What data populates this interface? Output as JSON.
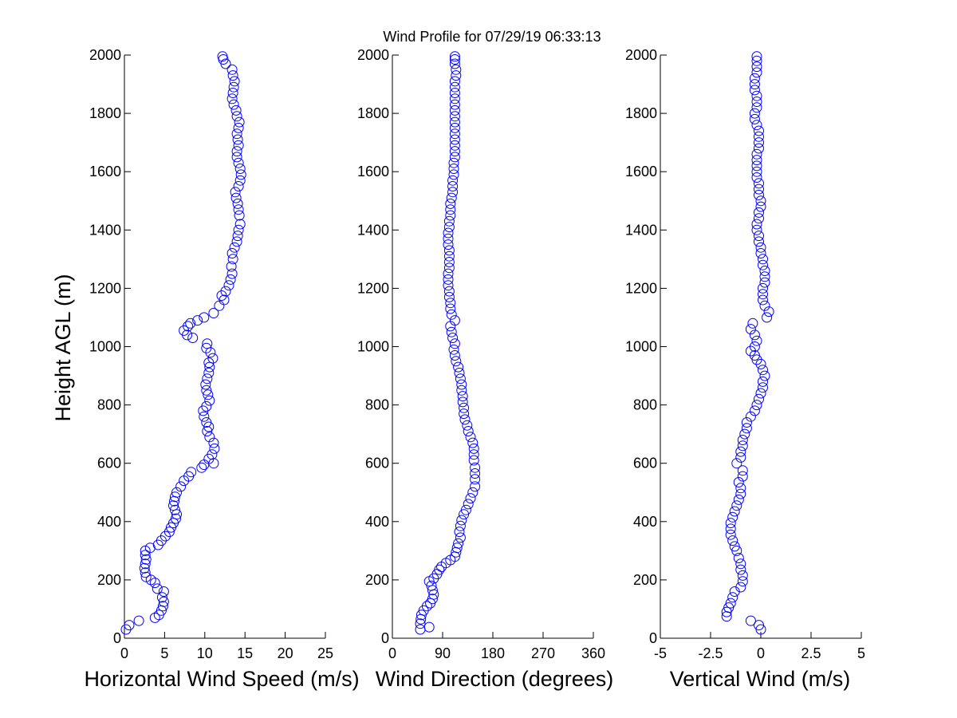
{
  "figure_title": "Wind Profile for  07/29/19 06:33:13",
  "colors": {
    "marker": "#0000ff",
    "axes": "#000000",
    "background": "#ffffff"
  },
  "chart_data": [
    {
      "type": "scatter",
      "title": "Wind Profile for  07/29/19 06:33:13",
      "xlabel": "Horizontal Wind Speed (m/s)",
      "ylabel": "Height AGL (m)",
      "xlim": [
        0,
        25
      ],
      "ylim": [
        0,
        2000
      ],
      "xticks": [
        0,
        5,
        10,
        15,
        20,
        25
      ],
      "xtick_labels": [
        "0",
        "5",
        "10",
        "15",
        "20",
        "25"
      ],
      "yticks": [
        0,
        200,
        400,
        600,
        800,
        1000,
        1200,
        1400,
        1600,
        1800,
        2000
      ],
      "ytick_labels": [
        "0",
        "200",
        "400",
        "600",
        "800",
        "1000",
        "1200",
        "1400",
        "1600",
        "1800",
        "2000"
      ],
      "grid": false,
      "marker": "open-circle",
      "color": "#0000ff",
      "points": [
        [
          0.2,
          30
        ],
        [
          0.6,
          45
        ],
        [
          1.8,
          60
        ],
        [
          3.8,
          70
        ],
        [
          4.3,
          80
        ],
        [
          4.6,
          95
        ],
        [
          4.8,
          110
        ],
        [
          4.9,
          125
        ],
        [
          4.7,
          140
        ],
        [
          4.9,
          160
        ],
        [
          4.1,
          170
        ],
        [
          3.8,
          190
        ],
        [
          3.3,
          200
        ],
        [
          2.7,
          210
        ],
        [
          2.6,
          225
        ],
        [
          2.5,
          240
        ],
        [
          2.6,
          255
        ],
        [
          2.7,
          270
        ],
        [
          2.6,
          285
        ],
        [
          2.6,
          300
        ],
        [
          3.2,
          310
        ],
        [
          4.2,
          320
        ],
        [
          4.6,
          335
        ],
        [
          5.1,
          350
        ],
        [
          5.6,
          365
        ],
        [
          5.8,
          380
        ],
        [
          6.1,
          395
        ],
        [
          6.4,
          410
        ],
        [
          6.5,
          425
        ],
        [
          6.3,
          440
        ],
        [
          6.1,
          455
        ],
        [
          6.2,
          470
        ],
        [
          6.3,
          485
        ],
        [
          6.5,
          500
        ],
        [
          7.0,
          520
        ],
        [
          7.4,
          540
        ],
        [
          8.0,
          555
        ],
        [
          8.3,
          570
        ],
        [
          9.6,
          585
        ],
        [
          9.9,
          595
        ],
        [
          11.1,
          600
        ],
        [
          10.5,
          615
        ],
        [
          10.9,
          630
        ],
        [
          11.2,
          650
        ],
        [
          11.1,
          670
        ],
        [
          10.6,
          690
        ],
        [
          10.3,
          710
        ],
        [
          10.5,
          725
        ],
        [
          10.2,
          740
        ],
        [
          9.9,
          760
        ],
        [
          9.8,
          780
        ],
        [
          10.2,
          795
        ],
        [
          10.6,
          815
        ],
        [
          10.4,
          835
        ],
        [
          10.2,
          850
        ],
        [
          10.1,
          870
        ],
        [
          10.3,
          890
        ],
        [
          10.5,
          910
        ],
        [
          10.6,
          930
        ],
        [
          10.5,
          945
        ],
        [
          11.0,
          960
        ],
        [
          10.7,
          980
        ],
        [
          10.2,
          995
        ],
        [
          10.3,
          1010
        ],
        [
          8.5,
          1030
        ],
        [
          7.8,
          1040
        ],
        [
          7.4,
          1055
        ],
        [
          7.9,
          1070
        ],
        [
          8.2,
          1080
        ],
        [
          9.1,
          1090
        ],
        [
          9.9,
          1100
        ],
        [
          11.1,
          1115
        ],
        [
          11.8,
          1140
        ],
        [
          12.4,
          1160
        ],
        [
          12.1,
          1175
        ],
        [
          12.6,
          1190
        ],
        [
          13.0,
          1210
        ],
        [
          13.2,
          1230
        ],
        [
          13.4,
          1250
        ],
        [
          13.3,
          1275
        ],
        [
          13.5,
          1300
        ],
        [
          13.4,
          1320
        ],
        [
          13.7,
          1340
        ],
        [
          14.0,
          1360
        ],
        [
          14.1,
          1380
        ],
        [
          14.2,
          1400
        ],
        [
          14.4,
          1420
        ],
        [
          14.3,
          1450
        ],
        [
          14.2,
          1470
        ],
        [
          14.1,
          1490
        ],
        [
          13.9,
          1510
        ],
        [
          13.8,
          1530
        ],
        [
          14.2,
          1550
        ],
        [
          14.4,
          1570
        ],
        [
          14.5,
          1590
        ],
        [
          14.4,
          1610
        ],
        [
          14.2,
          1630
        ],
        [
          14.0,
          1650
        ],
        [
          14.0,
          1670
        ],
        [
          14.2,
          1690
        ],
        [
          14.1,
          1710
        ],
        [
          14.0,
          1730
        ],
        [
          14.2,
          1750
        ],
        [
          14.3,
          1770
        ],
        [
          14.0,
          1790
        ],
        [
          13.9,
          1810
        ],
        [
          13.6,
          1830
        ],
        [
          13.4,
          1850
        ],
        [
          13.5,
          1870
        ],
        [
          13.6,
          1890
        ],
        [
          13.7,
          1910
        ],
        [
          13.5,
          1930
        ],
        [
          13.4,
          1950
        ],
        [
          12.6,
          1970
        ],
        [
          12.3,
          1985
        ],
        [
          12.2,
          1995
        ]
      ]
    },
    {
      "type": "scatter",
      "xlabel": "Wind Direction (degrees)",
      "ylabel": "",
      "xlim": [
        0,
        360
      ],
      "ylim": [
        0,
        2000
      ],
      "xticks": [
        0,
        90,
        180,
        270,
        360
      ],
      "xtick_labels": [
        "0",
        "90",
        "180",
        "270",
        "360"
      ],
      "yticks": [
        0,
        200,
        400,
        600,
        800,
        1000,
        1200,
        1400,
        1600,
        1800,
        2000
      ],
      "ytick_labels": [
        "0",
        "200",
        "400",
        "600",
        "800",
        "1000",
        "1200",
        "1400",
        "1600",
        "1800",
        "2000"
      ],
      "grid": false,
      "marker": "open-circle",
      "color": "#0000ff",
      "points": [
        [
          50,
          30
        ],
        [
          66,
          38
        ],
        [
          50,
          50
        ],
        [
          51,
          65
        ],
        [
          52,
          80
        ],
        [
          56,
          95
        ],
        [
          62,
          110
        ],
        [
          68,
          120
        ],
        [
          72,
          135
        ],
        [
          74,
          150
        ],
        [
          72,
          165
        ],
        [
          70,
          180
        ],
        [
          66,
          195
        ],
        [
          74,
          205
        ],
        [
          80,
          220
        ],
        [
          84,
          235
        ],
        [
          88,
          245
        ],
        [
          96,
          258
        ],
        [
          104,
          268
        ],
        [
          112,
          280
        ],
        [
          114,
          295
        ],
        [
          116,
          310
        ],
        [
          118,
          325
        ],
        [
          122,
          345
        ],
        [
          120,
          365
        ],
        [
          122,
          385
        ],
        [
          124,
          405
        ],
        [
          128,
          425
        ],
        [
          132,
          440
        ],
        [
          136,
          460
        ],
        [
          140,
          480
        ],
        [
          144,
          500
        ],
        [
          148,
          520
        ],
        [
          148,
          545
        ],
        [
          148,
          565
        ],
        [
          148,
          585
        ],
        [
          146,
          610
        ],
        [
          146,
          630
        ],
        [
          146,
          650
        ],
        [
          144,
          670
        ],
        [
          140,
          690
        ],
        [
          136,
          710
        ],
        [
          134,
          730
        ],
        [
          130,
          750
        ],
        [
          128,
          770
        ],
        [
          128,
          790
        ],
        [
          126,
          810
        ],
        [
          126,
          830
        ],
        [
          124,
          850
        ],
        [
          124,
          870
        ],
        [
          122,
          890
        ],
        [
          120,
          910
        ],
        [
          118,
          930
        ],
        [
          114,
          950
        ],
        [
          112,
          970
        ],
        [
          110,
          990
        ],
        [
          112,
          1010
        ],
        [
          108,
          1030
        ],
        [
          106,
          1050
        ],
        [
          104,
          1070
        ],
        [
          112,
          1090
        ],
        [
          106,
          1110
        ],
        [
          104,
          1130
        ],
        [
          104,
          1150
        ],
        [
          102,
          1170
        ],
        [
          102,
          1190
        ],
        [
          100,
          1210
        ],
        [
          100,
          1230
        ],
        [
          100,
          1250
        ],
        [
          102,
          1270
        ],
        [
          102,
          1290
        ],
        [
          102,
          1310
        ],
        [
          102,
          1330
        ],
        [
          100,
          1350
        ],
        [
          100,
          1370
        ],
        [
          100,
          1390
        ],
        [
          102,
          1410
        ],
        [
          102,
          1430
        ],
        [
          104,
          1450
        ],
        [
          104,
          1470
        ],
        [
          104,
          1490
        ],
        [
          106,
          1510
        ],
        [
          108,
          1530
        ],
        [
          108,
          1550
        ],
        [
          108,
          1570
        ],
        [
          110,
          1590
        ],
        [
          110,
          1610
        ],
        [
          110,
          1630
        ],
        [
          112,
          1650
        ],
        [
          112,
          1670
        ],
        [
          112,
          1690
        ],
        [
          112,
          1710
        ],
        [
          112,
          1730
        ],
        [
          112,
          1750
        ],
        [
          112,
          1770
        ],
        [
          112,
          1790
        ],
        [
          112,
          1810
        ],
        [
          112,
          1830
        ],
        [
          112,
          1850
        ],
        [
          112,
          1870
        ],
        [
          112,
          1890
        ],
        [
          112,
          1910
        ],
        [
          114,
          1930
        ],
        [
          114,
          1950
        ],
        [
          112,
          1970
        ],
        [
          112,
          1985
        ],
        [
          112,
          1995
        ]
      ]
    },
    {
      "type": "scatter",
      "xlabel": "Vertical Wind (m/s)",
      "ylabel": "",
      "xlim": [
        -5,
        5
      ],
      "ylim": [
        0,
        2000
      ],
      "xticks": [
        -5,
        -2.5,
        0,
        2.5,
        5
      ],
      "xtick_labels": [
        "-5",
        "-2.5",
        "0",
        "2.5",
        "5"
      ],
      "yticks": [
        0,
        200,
        400,
        600,
        800,
        1000,
        1200,
        1400,
        1600,
        1800,
        2000
      ],
      "ytick_labels": [
        "0",
        "200",
        "400",
        "600",
        "800",
        "1000",
        "1200",
        "1400",
        "1600",
        "1800",
        "2000"
      ],
      "grid": false,
      "marker": "open-circle",
      "color": "#0000ff",
      "points": [
        [
          0.0,
          30
        ],
        [
          -0.1,
          45
        ],
        [
          -0.5,
          60
        ],
        [
          -1.7,
          75
        ],
        [
          -1.7,
          90
        ],
        [
          -1.6,
          105
        ],
        [
          -1.5,
          120
        ],
        [
          -1.4,
          140
        ],
        [
          -1.3,
          160
        ],
        [
          -1.0,
          175
        ],
        [
          -0.9,
          195
        ],
        [
          -0.9,
          215
        ],
        [
          -1.0,
          235
        ],
        [
          -1.0,
          255
        ],
        [
          -1.1,
          275
        ],
        [
          -1.2,
          300
        ],
        [
          -1.3,
          315
        ],
        [
          -1.4,
          335
        ],
        [
          -1.5,
          355
        ],
        [
          -1.5,
          375
        ],
        [
          -1.5,
          395
        ],
        [
          -1.4,
          415
        ],
        [
          -1.3,
          435
        ],
        [
          -1.2,
          455
        ],
        [
          -1.1,
          475
        ],
        [
          -1.0,
          495
        ],
        [
          -1.0,
          515
        ],
        [
          -1.1,
          535
        ],
        [
          -0.9,
          555
        ],
        [
          -0.9,
          575
        ],
        [
          -1.2,
          600
        ],
        [
          -1.0,
          620
        ],
        [
          -1.0,
          640
        ],
        [
          -0.9,
          660
        ],
        [
          -0.9,
          680
        ],
        [
          -0.8,
          700
        ],
        [
          -0.7,
          720
        ],
        [
          -0.7,
          740
        ],
        [
          -0.5,
          760
        ],
        [
          -0.3,
          780
        ],
        [
          -0.2,
          800
        ],
        [
          -0.1,
          820
        ],
        [
          0.0,
          840
        ],
        [
          0.1,
          860
        ],
        [
          0.1,
          880
        ],
        [
          0.2,
          900
        ],
        [
          0.1,
          920
        ],
        [
          0.0,
          940
        ],
        [
          -0.2,
          955
        ],
        [
          -0.3,
          970
        ],
        [
          -0.5,
          985
        ],
        [
          -0.3,
          1000
        ],
        [
          -0.2,
          1020
        ],
        [
          -0.3,
          1040
        ],
        [
          -0.5,
          1060
        ],
        [
          -0.4,
          1080
        ],
        [
          0.3,
          1100
        ],
        [
          0.4,
          1120
        ],
        [
          0.2,
          1140
        ],
        [
          0.1,
          1160
        ],
        [
          0.1,
          1180
        ],
        [
          0.1,
          1200
        ],
        [
          0.2,
          1220
        ],
        [
          0.2,
          1240
        ],
        [
          0.2,
          1260
        ],
        [
          0.1,
          1280
        ],
        [
          0.1,
          1300
        ],
        [
          0.0,
          1320
        ],
        [
          0.0,
          1340
        ],
        [
          -0.1,
          1360
        ],
        [
          -0.1,
          1380
        ],
        [
          -0.2,
          1400
        ],
        [
          -0.2,
          1420
        ],
        [
          -0.1,
          1440
        ],
        [
          -0.1,
          1460
        ],
        [
          0.0,
          1480
        ],
        [
          0.0,
          1500
        ],
        [
          -0.1,
          1520
        ],
        [
          -0.1,
          1540
        ],
        [
          -0.1,
          1560
        ],
        [
          -0.2,
          1580
        ],
        [
          -0.2,
          1600
        ],
        [
          -0.2,
          1620
        ],
        [
          -0.2,
          1640
        ],
        [
          -0.2,
          1660
        ],
        [
          -0.1,
          1680
        ],
        [
          -0.1,
          1700
        ],
        [
          -0.1,
          1720
        ],
        [
          -0.1,
          1740
        ],
        [
          -0.2,
          1760
        ],
        [
          -0.3,
          1780
        ],
        [
          -0.3,
          1800
        ],
        [
          -0.2,
          1820
        ],
        [
          -0.2,
          1840
        ],
        [
          -0.2,
          1860
        ],
        [
          -0.3,
          1880
        ],
        [
          -0.3,
          1900
        ],
        [
          -0.3,
          1920
        ],
        [
          -0.2,
          1940
        ],
        [
          -0.2,
          1960
        ],
        [
          -0.2,
          1980
        ],
        [
          -0.2,
          1995
        ]
      ]
    }
  ]
}
